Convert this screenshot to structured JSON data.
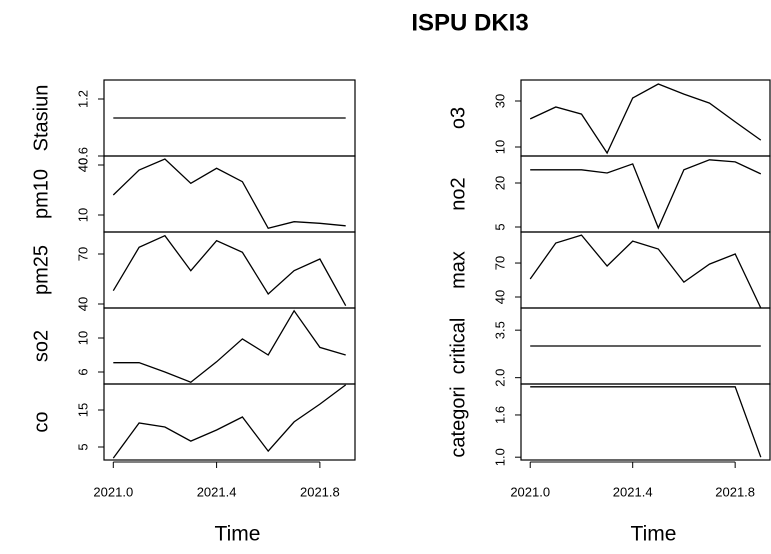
{
  "chart_data": [
    {
      "type": "line",
      "title": "ISPU DKI3",
      "xlabel": "Time",
      "x": [
        2021.0,
        2021.1,
        2021.2,
        2021.3,
        2021.4,
        2021.5,
        2021.6,
        2021.7,
        2021.8,
        2021.9
      ],
      "xlim": [
        2020.964,
        2021.936
      ],
      "xticks": [
        {
          "value": 2021.0,
          "label": "2021.0"
        },
        {
          "value": 2021.4,
          "label": "2021.4"
        },
        {
          "value": 2021.8,
          "label": "2021.8"
        }
      ],
      "color": "#000000",
      "panels": [
        {
          "name": "Stasiun",
          "values": [
            1,
            1,
            1,
            1,
            1,
            1,
            1,
            1,
            1,
            1
          ],
          "ylim": [
            0.6,
            1.4
          ],
          "yticks": [
            0.6,
            1.2
          ]
        },
        {
          "name": "pm10",
          "values": [
            22,
            37,
            43.6,
            29,
            38,
            30,
            2,
            6,
            5,
            3.5
          ],
          "ylim": [
            -0.2,
            45.4
          ],
          "yticks": [
            10,
            40
          ]
        },
        {
          "name": "pm25",
          "values": [
            48,
            74,
            81,
            60,
            78,
            71,
            46,
            60,
            67,
            39
          ],
          "ylim": [
            37.6,
            83.2
          ],
          "yticks": [
            40,
            70
          ]
        },
        {
          "name": "so2",
          "values": [
            7.1,
            7.1,
            6,
            4.8,
            7.2,
            9.9,
            8,
            13.2,
            8.9,
            8
          ],
          "ylim": [
            4.59,
            13.53
          ],
          "yticks": [
            6,
            10
          ]
        },
        {
          "name": "co",
          "values": [
            2,
            11.5,
            10.4,
            6.6,
            9.6,
            13.1,
            3.9,
            11.8,
            16.6,
            21.8
          ],
          "ylim": [
            1.49,
            22.03
          ],
          "yticks": [
            5,
            15
          ]
        }
      ]
    },
    {
      "type": "line",
      "xlabel": "Time",
      "x": [
        2021.0,
        2021.1,
        2021.2,
        2021.3,
        2021.4,
        2021.5,
        2021.6,
        2021.7,
        2021.8,
        2021.9
      ],
      "xlim": [
        2020.964,
        2021.936
      ],
      "xticks": [
        {
          "value": 2021.0,
          "label": "2021.0"
        },
        {
          "value": 2021.4,
          "label": "2021.4"
        },
        {
          "value": 2021.8,
          "label": "2021.8"
        }
      ],
      "color": "#000000",
      "panels": [
        {
          "name": "o3",
          "values": [
            22.2,
            27.4,
            24.3,
            7.4,
            31.3,
            37.4,
            33,
            29.1,
            20.9,
            13
          ],
          "ylim": [
            6.09,
            39.13
          ],
          "yticks": [
            10,
            30
          ]
        },
        {
          "name": "no2",
          "values": [
            24.5,
            24.5,
            24.5,
            23.4,
            26.5,
            4.7,
            24.5,
            27.9,
            27.2,
            23.1
          ],
          "ylim": [
            3.3,
            29.2
          ],
          "yticks": [
            5,
            20
          ]
        },
        {
          "name": "max",
          "values": [
            55.9,
            87.7,
            94.7,
            67.4,
            89.4,
            82.4,
            53.2,
            69.1,
            78,
            30.3
          ],
          "ylim": [
            30.3,
            97.4
          ],
          "yticks": [
            40,
            70
          ]
        },
        {
          "name": "critical",
          "values": [
            3,
            3,
            3,
            3,
            3,
            3,
            3,
            3,
            3,
            3
          ],
          "ylim": [
            1.8,
            4.2
          ],
          "yticks": [
            {
              "value": 2,
              "label": "2.0"
            },
            3.5
          ]
        },
        {
          "name": "categori",
          "values": [
            2,
            2,
            2,
            2,
            2,
            2,
            2,
            2,
            2,
            1
          ],
          "ylim": [
            0.96,
            2.04
          ],
          "yticks": [
            {
              "value": 1,
              "label": "1.0"
            },
            1.6
          ]
        }
      ]
    }
  ]
}
